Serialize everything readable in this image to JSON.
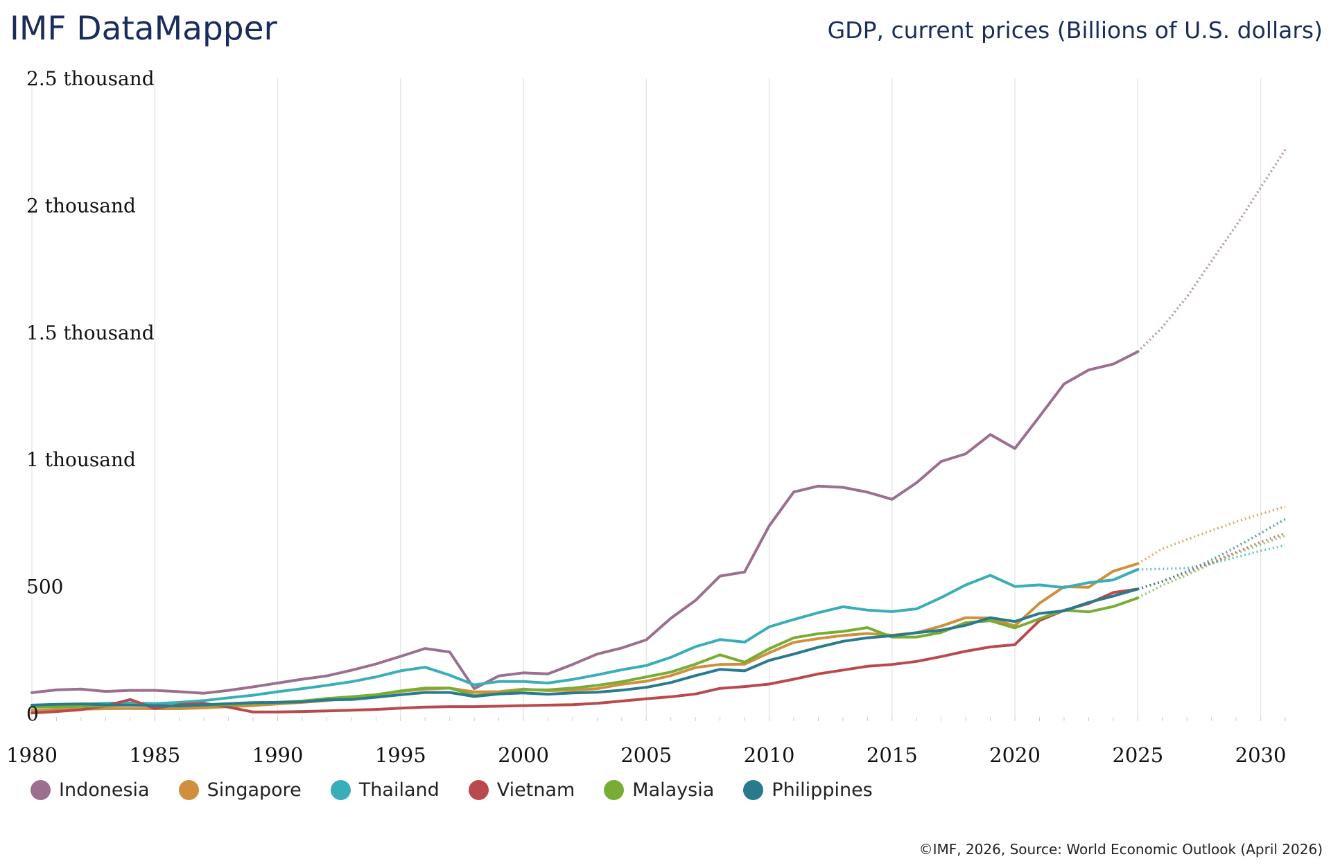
{
  "header": {
    "brand": "IMF DataMapper",
    "indicator_title": "GDP, current prices (Billions of U.S. dollars)"
  },
  "footer": {
    "source": "©IMF, 2026, Source: World Economic Outlook (April 2026)"
  },
  "chart_data": {
    "type": "line",
    "title": "GDP, current prices (Billions of U.S. dollars)",
    "xlabel": "",
    "ylabel": "",
    "xlim": [
      1980,
      2031
    ],
    "ylim": [
      0,
      2500
    ],
    "grid": "vertical",
    "legend_position": "bottom-left",
    "y_ticks": [
      {
        "value": 0,
        "label": "0"
      },
      {
        "value": 500,
        "label": "500"
      },
      {
        "value": 1000,
        "label": "1 thousand"
      },
      {
        "value": 1500,
        "label": "1.5 thousand"
      },
      {
        "value": 2000,
        "label": "2 thousand"
      },
      {
        "value": 2500,
        "label": "2.5 thousand"
      }
    ],
    "x_ticks": [
      1980,
      1985,
      1990,
      1995,
      2000,
      2005,
      2010,
      2015,
      2020,
      2025,
      2030
    ],
    "projection_start": 2025,
    "series": [
      {
        "name": "Indonesia",
        "color": "#9b6f8e",
        "x": [
          1980,
          1981,
          1982,
          1983,
          1984,
          1985,
          1986,
          1987,
          1988,
          1989,
          1990,
          1991,
          1992,
          1993,
          1994,
          1995,
          1996,
          1997,
          1998,
          1999,
          2000,
          2001,
          2002,
          2003,
          2004,
          2005,
          2006,
          2007,
          2008,
          2009,
          2010,
          2011,
          2012,
          2013,
          2014,
          2015,
          2016,
          2017,
          2018,
          2019,
          2020,
          2021,
          2022,
          2023,
          2024,
          2025,
          2026,
          2027,
          2028,
          2029,
          2030,
          2031
        ],
        "values": [
          82,
          93,
          96,
          87,
          91,
          91,
          86,
          80,
          91,
          105,
          120,
          135,
          148,
          170,
          195,
          225,
          256,
          242,
          98,
          148,
          160,
          156,
          193,
          234,
          258,
          290,
          375,
          445,
          541,
          557,
          738,
          872,
          895,
          890,
          871,
          843,
          908,
          992,
          1022,
          1098,
          1043,
          1169,
          1297,
          1352,
          1375,
          1424,
          1520,
          1640,
          1780,
          1920,
          2070,
          2220
        ]
      },
      {
        "name": "Singapore",
        "color": "#d08f3e",
        "x": [
          1980,
          1981,
          1982,
          1983,
          1984,
          1985,
          1986,
          1987,
          1988,
          1989,
          1990,
          1991,
          1992,
          1993,
          1994,
          1995,
          1996,
          1997,
          1998,
          1999,
          2000,
          2001,
          2002,
          2003,
          2004,
          2005,
          2006,
          2007,
          2008,
          2009,
          2010,
          2011,
          2012,
          2013,
          2014,
          2015,
          2016,
          2017,
          2018,
          2019,
          2020,
          2021,
          2022,
          2023,
          2024,
          2025,
          2026,
          2027,
          2028,
          2029,
          2030,
          2031
        ],
        "values": [
          12,
          15,
          17,
          19,
          20,
          19,
          19,
          22,
          27,
          31,
          38,
          44,
          51,
          60,
          73,
          87,
          96,
          100,
          85,
          86,
          96,
          90,
          92,
          98,
          115,
          127,
          149,
          181,
          193,
          194,
          239,
          280,
          295,
          307,
          315,
          308,
          318,
          344,
          377,
          376,
          345,
          434,
          499,
          497,
          560,
          590,
          648,
          685,
          720,
          755,
          785,
          815
        ]
      },
      {
        "name": "Thailand",
        "color": "#3aaeb8",
        "x": [
          1980,
          1981,
          1982,
          1983,
          1984,
          1985,
          1986,
          1987,
          1988,
          1989,
          1990,
          1991,
          1992,
          1993,
          1994,
          1995,
          1996,
          1997,
          1998,
          1999,
          2000,
          2001,
          2002,
          2003,
          2004,
          2005,
          2006,
          2007,
          2008,
          2009,
          2010,
          2011,
          2012,
          2013,
          2014,
          2015,
          2016,
          2017,
          2018,
          2019,
          2020,
          2021,
          2022,
          2023,
          2024,
          2025,
          2026,
          2027,
          2028,
          2029,
          2030,
          2031
        ],
        "values": [
          32,
          35,
          37,
          40,
          42,
          39,
          44,
          51,
          62,
          72,
          86,
          98,
          111,
          125,
          144,
          168,
          182,
          151,
          113,
          126,
          126,
          120,
          134,
          152,
          172,
          189,
          221,
          263,
          291,
          281,
          341,
          370,
          397,
          420,
          407,
          401,
          412,
          456,
          506,
          544,
          500,
          506,
          496,
          515,
          526,
          567,
          569,
          572,
          590,
          615,
          640,
          662
        ]
      },
      {
        "name": "Vietnam",
        "color": "#b84a4e",
        "x": [
          1980,
          1981,
          1982,
          1983,
          1984,
          1985,
          1986,
          1987,
          1988,
          1989,
          1990,
          1991,
          1992,
          1993,
          1994,
          1995,
          1996,
          1997,
          1998,
          1999,
          2000,
          2001,
          2002,
          2003,
          2004,
          2005,
          2006,
          2007,
          2008,
          2009,
          2010,
          2011,
          2012,
          2013,
          2014,
          2015,
          2016,
          2017,
          2018,
          2019,
          2020,
          2021,
          2022,
          2023,
          2024,
          2025,
          2026,
          2027,
          2028,
          2029,
          2030,
          2031
        ],
        "values": [
          2,
          8,
          15,
          30,
          55,
          20,
          35,
          40,
          25,
          6,
          6,
          8,
          10,
          13,
          16,
          21,
          25,
          27,
          27,
          29,
          31,
          33,
          35,
          40,
          49,
          58,
          66,
          77,
          99,
          106,
          116,
          135,
          156,
          171,
          186,
          193,
          205,
          224,
          245,
          262,
          271,
          366,
          406,
          433,
          476,
          490,
          520,
          555,
          595,
          635,
          675,
          710
        ]
      },
      {
        "name": "Malaysia",
        "color": "#78ad35",
        "x": [
          1980,
          1981,
          1982,
          1983,
          1984,
          1985,
          1986,
          1987,
          1988,
          1989,
          1990,
          1991,
          1992,
          1993,
          1994,
          1995,
          1996,
          1997,
          1998,
          1999,
          2000,
          2001,
          2002,
          2003,
          2004,
          2005,
          2006,
          2007,
          2008,
          2009,
          2010,
          2011,
          2012,
          2013,
          2014,
          2015,
          2016,
          2017,
          2018,
          2019,
          2020,
          2021,
          2022,
          2023,
          2024,
          2025,
          2026,
          2027,
          2028,
          2029,
          2030,
          2031
        ],
        "values": [
          25,
          26,
          28,
          30,
          34,
          31,
          28,
          32,
          35,
          38,
          44,
          49,
          59,
          66,
          74,
          89,
          100,
          100,
          72,
          79,
          94,
          93,
          100,
          111,
          125,
          144,
          163,
          194,
          231,
          202,
          255,
          298,
          314,
          323,
          338,
          301,
          301,
          319,
          358,
          365,
          337,
          373,
          407,
          400,
          421,
          455,
          505,
          545,
          590,
          630,
          665,
          700
        ]
      },
      {
        "name": "Philippines",
        "color": "#2a7a8e",
        "x": [
          1980,
          1981,
          1982,
          1983,
          1984,
          1985,
          1986,
          1987,
          1988,
          1989,
          1990,
          1991,
          1992,
          1993,
          1994,
          1995,
          1996,
          1997,
          1998,
          1999,
          2000,
          2001,
          2002,
          2003,
          2004,
          2005,
          2006,
          2007,
          2008,
          2009,
          2010,
          2011,
          2012,
          2013,
          2014,
          2015,
          2016,
          2017,
          2018,
          2019,
          2020,
          2021,
          2022,
          2023,
          2024,
          2025,
          2026,
          2027,
          2028,
          2029,
          2030,
          2031
        ],
        "values": [
          33,
          36,
          38,
          34,
          33,
          31,
          30,
          34,
          39,
          43,
          44,
          46,
          54,
          55,
          64,
          74,
          83,
          83,
          67,
          77,
          81,
          76,
          81,
          84,
          92,
          103,
          122,
          149,
          174,
          168,
          209,
          234,
          261,
          284,
          298,
          306,
          318,
          328,
          347,
          377,
          362,
          394,
          404,
          437,
          462,
          490,
          520,
          560,
          605,
          655,
          710,
          765
        ]
      }
    ]
  }
}
